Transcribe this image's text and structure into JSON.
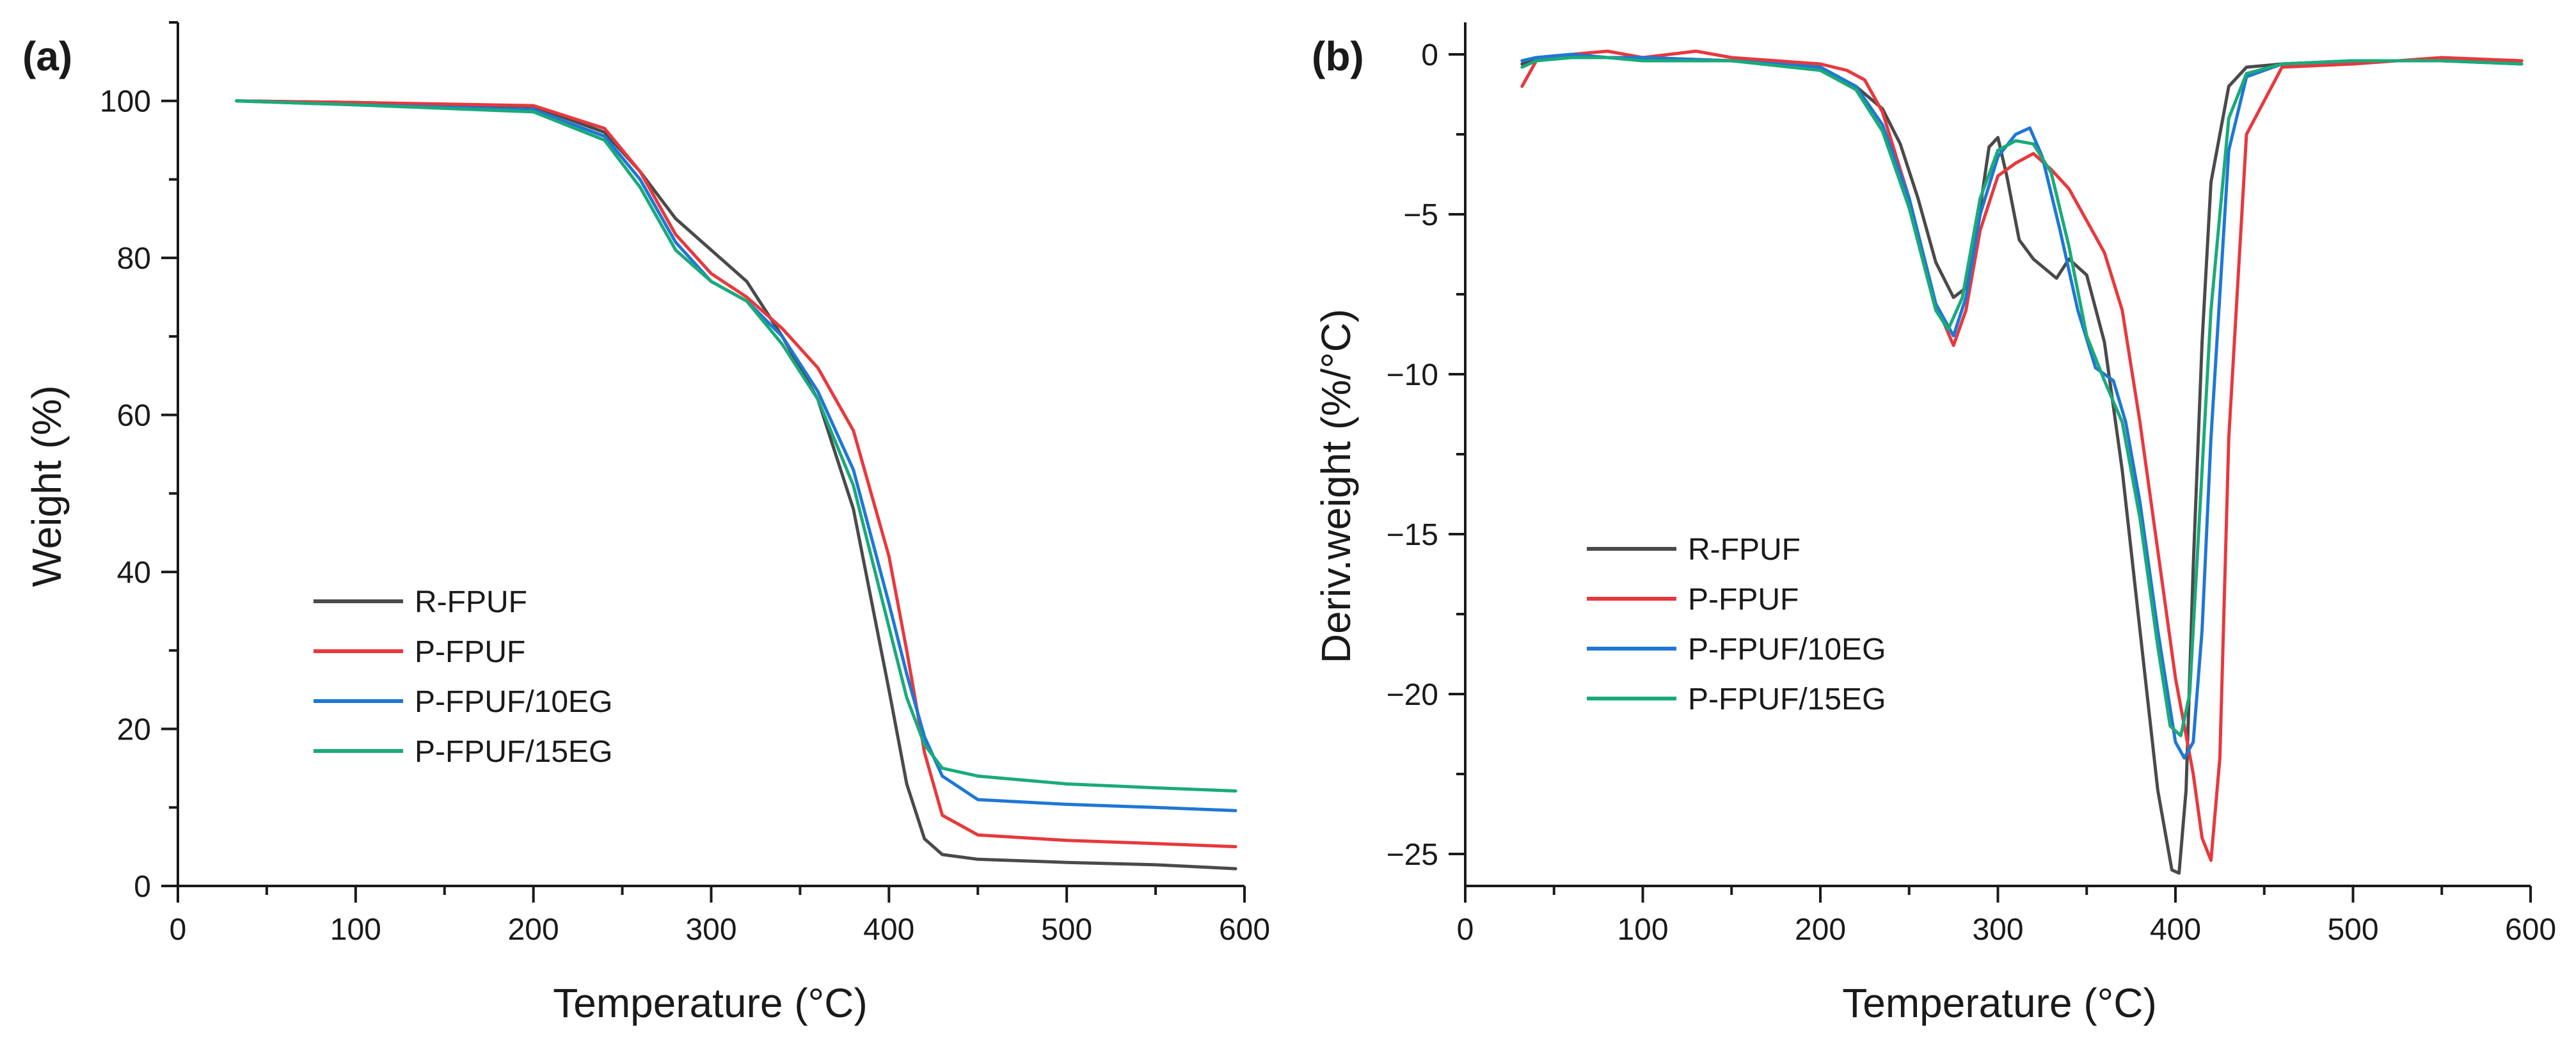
{
  "colors": {
    "R-FPUF": "#4a4a4a",
    "P-FPUF": "#e8383d",
    "P-FPUF/10EG": "#1f77d4",
    "P-FPUF/15EG": "#1aaa7a"
  },
  "chart_data": [
    {
      "panel_label": "(a)",
      "type": "line",
      "xlabel": "Temperature (°C)",
      "ylabel": "Weight (%)",
      "xlim": [
        0,
        600
      ],
      "ylim": [
        0,
        110
      ],
      "xticks": [
        0,
        100,
        200,
        300,
        400,
        500,
        600
      ],
      "yticks": [
        0,
        20,
        40,
        60,
        80,
        100
      ],
      "legend_position": "lower-left",
      "series": [
        {
          "name": "R-FPUF",
          "x": [
            33,
            100,
            200,
            240,
            260,
            280,
            300,
            320,
            340,
            360,
            380,
            400,
            410,
            420,
            430,
            450,
            500,
            550,
            595
          ],
          "y": [
            100,
            99.8,
            99.3,
            96,
            91,
            85,
            81,
            77,
            70,
            62,
            48,
            25,
            13,
            6,
            4,
            3.4,
            3.0,
            2.7,
            2.2
          ]
        },
        {
          "name": "P-FPUF",
          "x": [
            33,
            100,
            200,
            240,
            260,
            280,
            300,
            320,
            340,
            360,
            380,
            400,
            410,
            420,
            430,
            450,
            500,
            550,
            595
          ],
          "y": [
            100,
            99.8,
            99.4,
            96.5,
            91,
            83,
            78,
            75,
            71,
            66,
            58,
            42,
            30,
            17,
            9,
            6.5,
            5.8,
            5.4,
            5.0
          ]
        },
        {
          "name": "P-FPUF/10EG",
          "x": [
            33,
            100,
            200,
            240,
            260,
            280,
            300,
            320,
            340,
            360,
            380,
            400,
            410,
            420,
            430,
            450,
            500,
            550,
            595
          ],
          "y": [
            100,
            99.5,
            98.9,
            95.5,
            90,
            82,
            77,
            74.5,
            70,
            63,
            53,
            36,
            27,
            19,
            14,
            11,
            10.4,
            10.0,
            9.6
          ]
        },
        {
          "name": "P-FPUF/15EG",
          "x": [
            33,
            100,
            200,
            240,
            260,
            280,
            300,
            320,
            340,
            360,
            380,
            400,
            410,
            420,
            430,
            450,
            500,
            550,
            595
          ],
          "y": [
            100,
            99.5,
            98.6,
            95,
            89,
            81,
            77,
            74.5,
            69,
            62,
            51,
            33,
            24,
            18,
            15,
            14,
            13,
            12.5,
            12.1
          ]
        }
      ]
    },
    {
      "panel_label": "(b)",
      "type": "line",
      "xlabel": "Temperature (°C)",
      "ylabel": "Deriv.weight (%/°C)",
      "xlim": [
        0,
        600
      ],
      "ylim": [
        -26,
        1
      ],
      "xticks": [
        0,
        100,
        200,
        300,
        400,
        500,
        600
      ],
      "yticks": [
        0,
        -5,
        -10,
        -15,
        -20,
        -25
      ],
      "ytick_labels": [
        "0",
        "−5",
        "−10",
        "−15",
        "−20",
        "−25"
      ],
      "legend_position": "lower-left",
      "series": [
        {
          "name": "R-FPUF",
          "x": [
            32,
            40,
            60,
            80,
            100,
            150,
            200,
            220,
            235,
            245,
            255,
            265,
            275,
            282,
            290,
            295,
            300,
            305,
            312,
            320,
            333,
            340,
            350,
            360,
            370,
            380,
            390,
            398,
            402,
            406,
            410,
            415,
            420,
            430,
            440,
            460,
            500,
            550,
            595
          ],
          "y": [
            -0.3,
            -0.1,
            0,
            -0.1,
            -0.1,
            -0.2,
            -0.4,
            -1.0,
            -1.7,
            -2.8,
            -4.5,
            -6.5,
            -7.6,
            -7.3,
            -4.8,
            -2.9,
            -2.6,
            -3.8,
            -5.8,
            -6.4,
            -7.0,
            -6.4,
            -6.9,
            -9.0,
            -13,
            -18,
            -23,
            -25.5,
            -25.6,
            -23,
            -16,
            -9,
            -4.0,
            -1.0,
            -0.4,
            -0.3,
            -0.2,
            -0.2,
            -0.2
          ]
        },
        {
          "name": "P-FPUF",
          "x": [
            32,
            40,
            60,
            80,
            100,
            130,
            150,
            200,
            215,
            225,
            235,
            250,
            265,
            275,
            282,
            290,
            300,
            310,
            320,
            330,
            340,
            350,
            360,
            370,
            380,
            390,
            400,
            410,
            415,
            420,
            425,
            430,
            440,
            460,
            500,
            550,
            595
          ],
          "y": [
            -1.0,
            -0.2,
            0,
            0.1,
            -0.1,
            0.1,
            -0.1,
            -0.3,
            -0.5,
            -0.8,
            -1.8,
            -4.5,
            -7.8,
            -9.1,
            -8.0,
            -5.5,
            -3.8,
            -3.4,
            -3.1,
            -3.6,
            -4.2,
            -5.2,
            -6.2,
            -8.0,
            -11.5,
            -15.5,
            -19.5,
            -22.5,
            -24.5,
            -25.2,
            -22,
            -12,
            -2.5,
            -0.4,
            -0.3,
            -0.1,
            -0.2
          ]
        },
        {
          "name": "P-FPUF/10EG",
          "x": [
            32,
            40,
            60,
            80,
            100,
            150,
            200,
            220,
            235,
            250,
            265,
            275,
            282,
            290,
            300,
            310,
            318,
            325,
            335,
            345,
            355,
            365,
            372,
            380,
            390,
            400,
            405,
            410,
            415,
            420,
            430,
            440,
            460,
            500,
            550,
            595
          ],
          "y": [
            -0.2,
            -0.1,
            0,
            -0.1,
            -0.1,
            -0.2,
            -0.4,
            -1.0,
            -2.2,
            -4.5,
            -7.8,
            -8.8,
            -7.6,
            -5.0,
            -3.2,
            -2.5,
            -2.3,
            -3.2,
            -5.5,
            -8.0,
            -9.8,
            -10.2,
            -11.5,
            -14,
            -18,
            -21.5,
            -22.0,
            -21.5,
            -18,
            -12,
            -3.0,
            -0.7,
            -0.3,
            -0.2,
            -0.2,
            -0.3
          ]
        },
        {
          "name": "P-FPUF/15EG",
          "x": [
            32,
            40,
            60,
            80,
            100,
            150,
            200,
            220,
            235,
            250,
            265,
            272,
            280,
            290,
            300,
            310,
            320,
            330,
            340,
            350,
            360,
            370,
            380,
            390,
            397,
            403,
            408,
            412,
            420,
            430,
            440,
            460,
            500,
            550,
            595
          ],
          "y": [
            -0.4,
            -0.2,
            -0.1,
            -0.1,
            -0.2,
            -0.2,
            -0.5,
            -1.1,
            -2.4,
            -4.8,
            -8.0,
            -8.6,
            -7.6,
            -4.5,
            -3.0,
            -2.7,
            -2.8,
            -3.7,
            -6.0,
            -8.8,
            -10.2,
            -11.5,
            -14.5,
            -18.5,
            -21.0,
            -21.3,
            -20,
            -16,
            -8,
            -2.0,
            -0.6,
            -0.3,
            -0.2,
            -0.2,
            -0.3
          ]
        }
      ]
    }
  ]
}
